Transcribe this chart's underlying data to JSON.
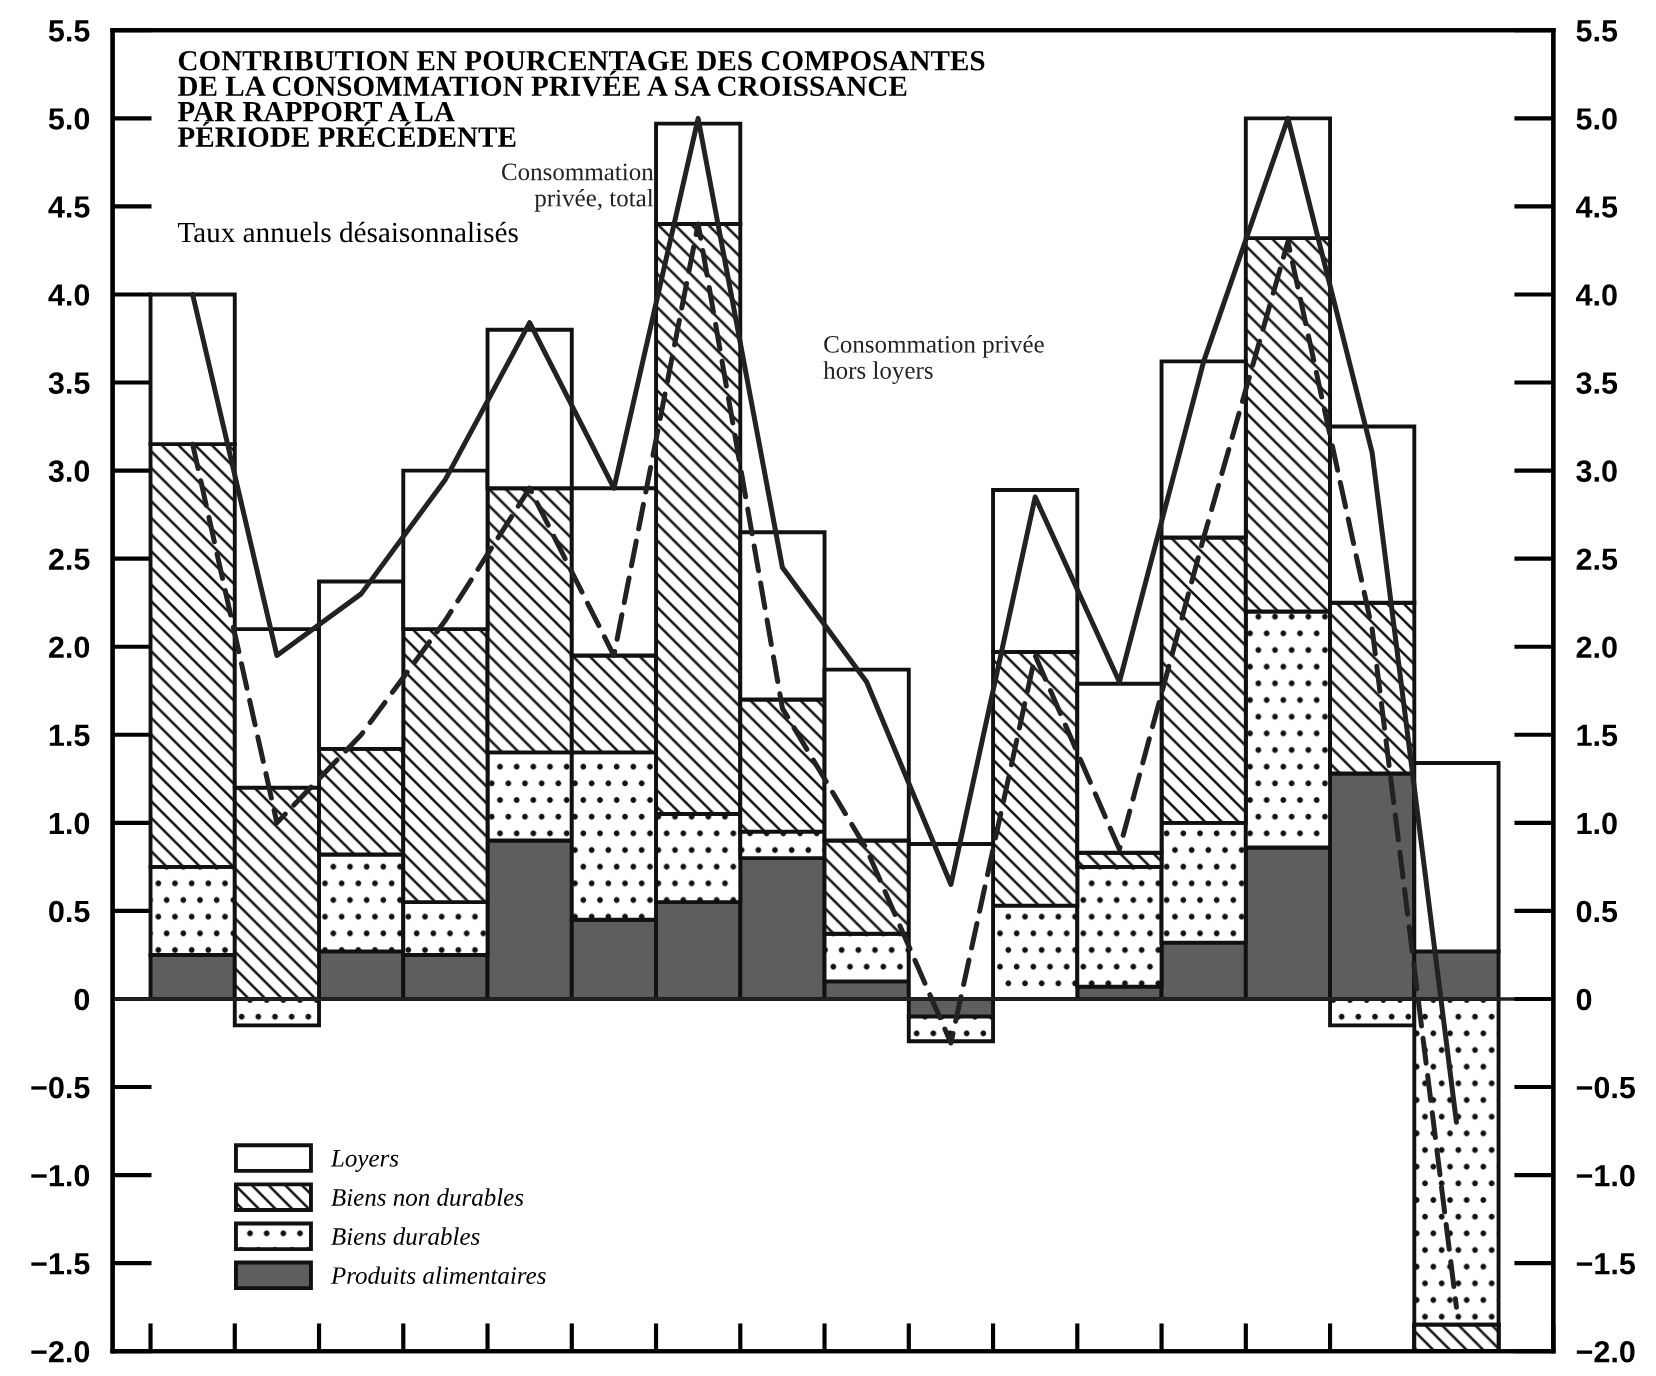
{
  "chart_data": {
    "type": "bar",
    "stacked": true,
    "title": "CONTRIBUTION EN POURCENTAGE DES COMPOSANTES\nDE LA CONSOMMATION PRIVÉE A SA CROISSANCE\nPAR RAPPORT A LA\nPÉRIODE PRÉCÉDENTE",
    "subtitle": "Taux annuels désaisonnalisés",
    "categories": [
      null,
      null,
      null,
      null,
      null,
      null,
      null,
      null,
      null,
      null,
      null,
      null,
      null,
      null,
      null,
      null
    ],
    "series": [
      {
        "name": "Produits alimentaires",
        "color": "#5e5e5e",
        "values": [
          0.25,
          0,
          0.27,
          0.25,
          0.9,
          0.45,
          0.55,
          0.8,
          0.1,
          -0.1,
          0,
          0.07,
          0.32,
          0.86,
          1.28,
          0.27
        ]
      },
      {
        "name": "Biens durables",
        "color": "#111111",
        "values": [
          0.5,
          -0.15,
          0.55,
          0.3,
          0.5,
          0.95,
          0.5,
          0.15,
          0.27,
          -0.14,
          0.53,
          0.68,
          0.68,
          1.34,
          -0.15,
          -1.85
        ]
      },
      {
        "name": "Biens non durables",
        "color": "#111111",
        "values": [
          2.4,
          1.2,
          0.6,
          1.55,
          1.5,
          0.55,
          3.35,
          0.75,
          0.53,
          0,
          1.44,
          0.08,
          1.62,
          2.12,
          0.97,
          -0.15
        ]
      },
      {
        "name": "Loyers",
        "color": "#ffffff",
        "values": [
          0.85,
          0.9,
          0.95,
          0.9,
          0.9,
          0.95,
          0.57,
          0.95,
          0.97,
          0.88,
          0.92,
          0.96,
          1.0,
          0.68,
          1.0,
          1.07
        ]
      },
      {
        "name": "Consommation\nprivée, total",
        "type": "line",
        "line_style": "solid",
        "color": "#222222",
        "values": [
          4.0,
          1.95,
          2.3,
          2.95,
          3.84,
          2.9,
          5.0,
          2.45,
          1.8,
          0.65,
          2.85,
          1.8,
          3.62,
          5.0,
          3.1,
          -0.7
        ]
      },
      {
        "name": "Consommation privée\nhors loyers",
        "type": "line",
        "line_style": "dashed",
        "color": "#222222",
        "values": [
          3.15,
          1.0,
          1.5,
          2.15,
          2.9,
          1.95,
          4.4,
          1.65,
          0.85,
          -0.25,
          1.95,
          0.85,
          2.62,
          4.3,
          2.1,
          -1.75
        ]
      }
    ],
    "ylim": [
      -2,
      5.5
    ],
    "yticks": [
      {
        "value": -2,
        "label": "−2.0"
      },
      {
        "value": -1.5,
        "label": "−1.5"
      },
      {
        "value": -1,
        "label": "−1.0"
      },
      {
        "value": -0.5,
        "label": "−0.5"
      },
      0,
      0.5,
      {
        "value": 1,
        "label": "1.0"
      },
      1.5,
      {
        "value": 2,
        "label": "2.0"
      },
      2.5,
      {
        "value": 3,
        "label": "3.0"
      },
      3.5,
      {
        "value": 4,
        "label": "4.0"
      },
      4.5,
      {
        "value": 5,
        "label": "5.0"
      },
      5.5
    ],
    "y2lim": [
      -2,
      5.5
    ],
    "y2ticks": [
      {
        "value": -2,
        "label": "−2.0"
      },
      {
        "value": -1.5,
        "label": "−1.5"
      },
      {
        "value": -1,
        "label": "−1.0"
      },
      {
        "value": -0.5,
        "label": "−0.5"
      },
      0,
      0.5,
      {
        "value": 1,
        "label": "1.0"
      },
      1.5,
      {
        "value": 2,
        "label": "2.0"
      },
      2.5,
      {
        "value": 3,
        "label": "3.0"
      },
      3.5,
      {
        "value": 4,
        "label": "4.0"
      },
      4.5,
      {
        "value": 5,
        "label": "5.0"
      },
      5.5
    ],
    "ref_lines": [
      {
        "axis": "y",
        "value": 0,
        "color": "#222222"
      }
    ],
    "legend": "bottom left",
    "grid": false,
    "marker": "none"
  }
}
